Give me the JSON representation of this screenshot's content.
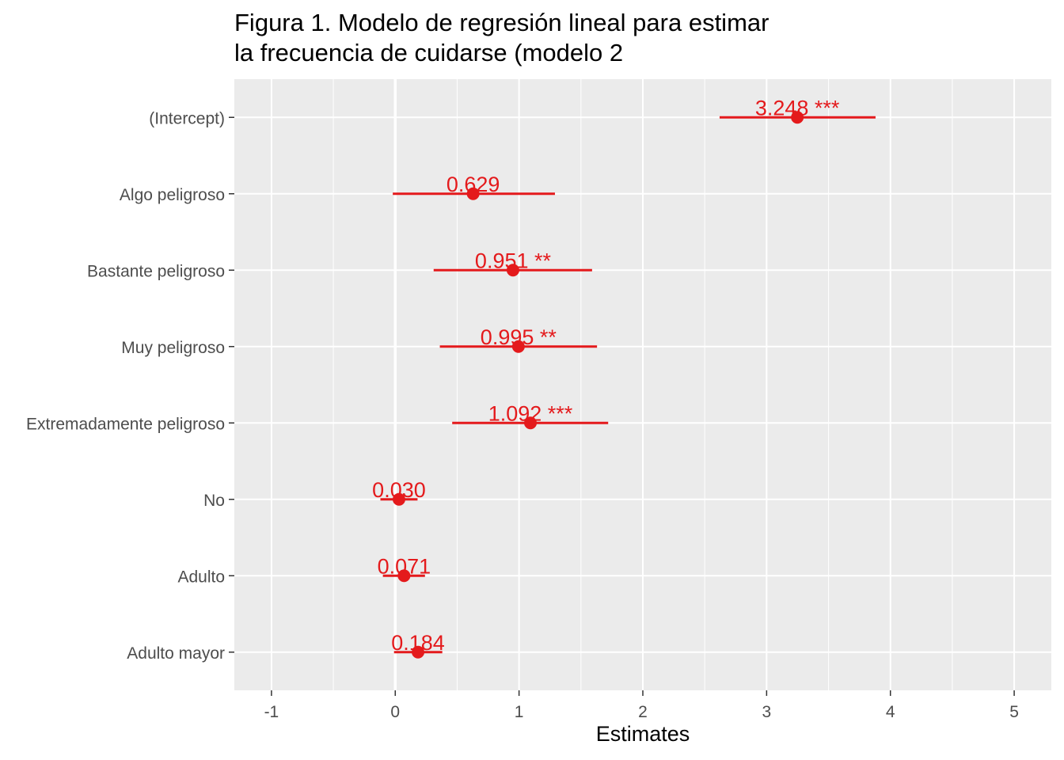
{
  "chart_data": {
    "type": "scatter",
    "subtype": "coefficient-plot",
    "title_lines": [
      "Figura 1. Modelo de regresión lineal para estimar",
      "la frecuencia de cuidarse (modelo 2"
    ],
    "xlabel": "Estimates",
    "ylabel": "",
    "xlim": [
      -1.3,
      5.3
    ],
    "x_ticks": [
      "-1",
      "0",
      "1",
      "2",
      "3",
      "4",
      "5"
    ],
    "grid": true,
    "terms": [
      {
        "label": "(Intercept)",
        "estimate": 3.248,
        "ci_low": 2.62,
        "ci_high": 3.88,
        "text": "3.248 ***"
      },
      {
        "label": "Algo peligroso",
        "estimate": 0.629,
        "ci_low": -0.02,
        "ci_high": 1.29,
        "text": "0.629"
      },
      {
        "label": "Bastante peligroso",
        "estimate": 0.951,
        "ci_low": 0.31,
        "ci_high": 1.59,
        "text": "0.951 **"
      },
      {
        "label": "Muy peligroso",
        "estimate": 0.995,
        "ci_low": 0.36,
        "ci_high": 1.63,
        "text": "0.995 **"
      },
      {
        "label": "Extremadamente peligroso",
        "estimate": 1.092,
        "ci_low": 0.46,
        "ci_high": 1.72,
        "text": "1.092 ***"
      },
      {
        "label": "No",
        "estimate": 0.03,
        "ci_low": -0.12,
        "ci_high": 0.18,
        "text": "0.030"
      },
      {
        "label": "Adulto",
        "estimate": 0.071,
        "ci_low": -0.1,
        "ci_high": 0.24,
        "text": "0.071"
      },
      {
        "label": "Adulto mayor",
        "estimate": 0.184,
        "ci_low": -0.01,
        "ci_high": 0.38,
        "text": "0.184"
      }
    ],
    "colors": {
      "point": "#e41a1c",
      "panel": "#ebebeb",
      "grid": "#ffffff",
      "axis_text": "#4d4d4d"
    }
  }
}
